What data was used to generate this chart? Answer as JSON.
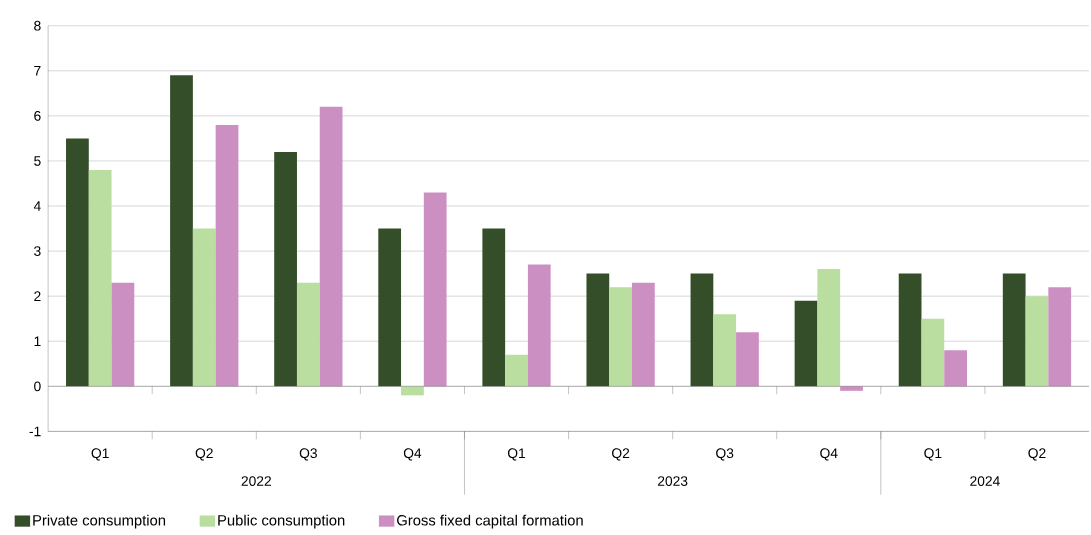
{
  "chart_data": {
    "type": "bar",
    "categories": [
      "Q1",
      "Q2",
      "Q3",
      "Q4",
      "Q1",
      "Q2",
      "Q3",
      "Q4",
      "Q1",
      "Q2"
    ],
    "annotations": [
      "2022",
      "2023",
      "2024"
    ],
    "series": [
      {
        "name": "Private consumption",
        "color": "#344e29",
        "values": [
          5.5,
          6.9,
          5.2,
          3.5,
          3.5,
          2.5,
          2.5,
          1.9,
          2.5,
          2.5
        ]
      },
      {
        "name": "Public consumption",
        "color": "#b9dea0",
        "values": [
          4.8,
          3.5,
          2.3,
          -0.2,
          0.7,
          2.2,
          1.6,
          2.6,
          1.5,
          2.0
        ]
      },
      {
        "name": "Gross fixed capital formation",
        "color": "#cc8fc2",
        "values": [
          2.3,
          5.8,
          6.2,
          4.3,
          2.7,
          2.3,
          1.2,
          -0.1,
          0.8,
          2.2
        ]
      }
    ],
    "ylim": [
      -1,
      8
    ],
    "yticks": [
      -1,
      0,
      1,
      2,
      3,
      4,
      5,
      6,
      7,
      8
    ],
    "grid": "y",
    "legend": "bottom"
  }
}
